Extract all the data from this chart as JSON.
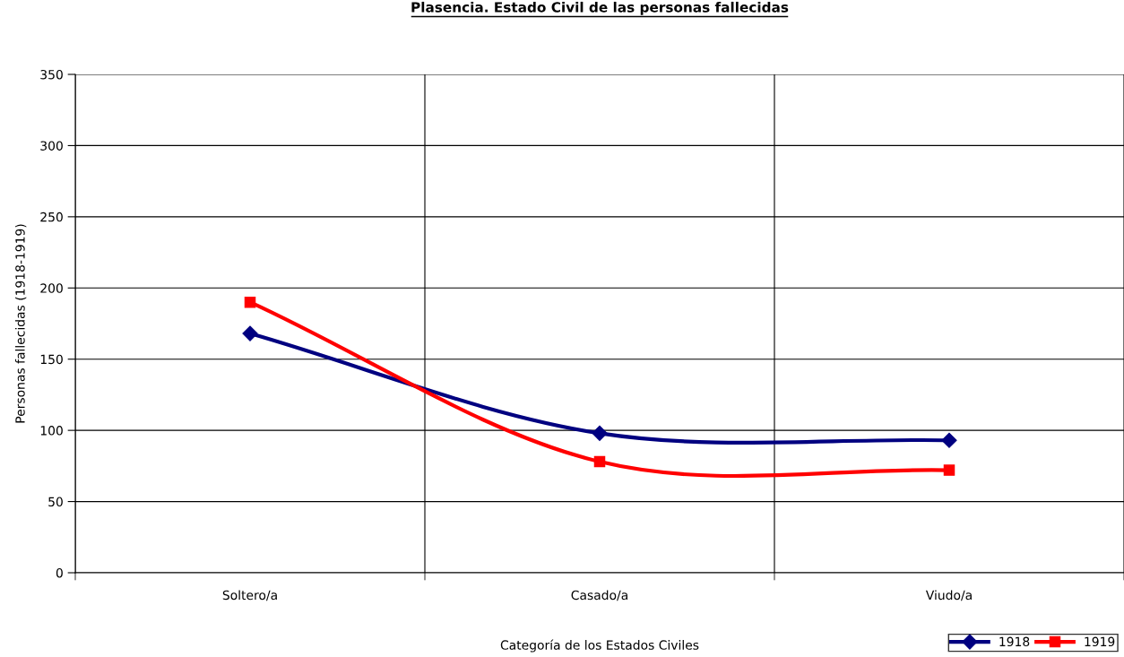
{
  "chart_data": {
    "type": "line",
    "title": "Plasencia. Estado Civil de las personas fallecidas",
    "xlabel": "Categoría de los Estados Civiles",
    "ylabel": "Personas fallecidas (1918-1919)",
    "categories": [
      "Soltero/a",
      "Casado/a",
      "Viudo/a"
    ],
    "series": [
      {
        "name": "1918",
        "color": "#000080",
        "marker": "diamond",
        "values": [
          168,
          98,
          93
        ]
      },
      {
        "name": "1919",
        "color": "#ff0000",
        "marker": "square",
        "values": [
          190,
          78,
          72
        ]
      }
    ],
    "ylim": [
      0,
      350
    ],
    "yticks": [
      0,
      50,
      100,
      150,
      200,
      250,
      300,
      350
    ],
    "grid": true,
    "legend": "bottom right",
    "line_style": "solid"
  }
}
